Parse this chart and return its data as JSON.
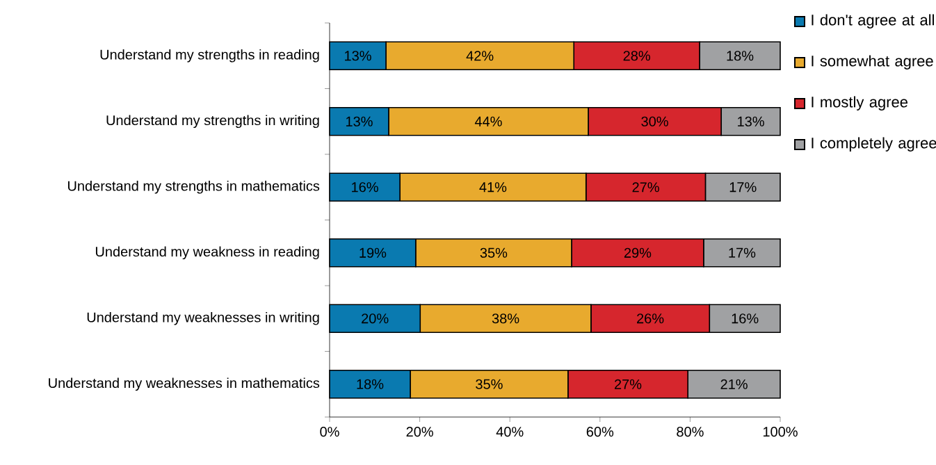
{
  "chart_data": {
    "type": "bar",
    "orientation": "horizontal",
    "stacked": true,
    "categories": [
      "Understand my strengths in reading",
      "Understand my strengths in writing",
      "Understand my strengths in mathematics",
      "Understand my weakness in reading",
      "Understand my weaknesses in writing",
      "Understand my weaknesses in mathematics"
    ],
    "series": [
      {
        "name": "I don't agree at all",
        "color": "#0a7ab0",
        "values": [
          12.5,
          13.1,
          15.6,
          19.1,
          20.1,
          17.9
        ],
        "value_labels": [
          "13%",
          "13%",
          "16%",
          "19%",
          "20%",
          "18%"
        ]
      },
      {
        "name": "I somewhat agree",
        "color": "#e8aa2e",
        "values": [
          41.7,
          44.3,
          41.3,
          34.6,
          37.9,
          35.0
        ],
        "value_labels": [
          "42%",
          "44%",
          "41%",
          "35%",
          "38%",
          "35%"
        ]
      },
      {
        "name": "I mostly agree",
        "color": "#d6262d",
        "values": [
          27.9,
          29.5,
          26.5,
          29.3,
          26.3,
          26.6
        ],
        "value_labels": [
          "28%",
          "30%",
          "27%",
          "29%",
          "26%",
          "27%"
        ]
      },
      {
        "name": "I completely agree",
        "color": "#a0a1a3",
        "values": [
          17.9,
          13.1,
          16.6,
          17.0,
          15.7,
          20.5
        ],
        "value_labels": [
          "18%",
          "13%",
          "17%",
          "17%",
          "16%",
          "21%"
        ]
      }
    ],
    "xlim": [
      0,
      100
    ],
    "xticks": [
      {
        "value": 0,
        "label": "0%"
      },
      {
        "value": 20,
        "label": "20%"
      },
      {
        "value": 40,
        "label": "40%"
      },
      {
        "value": 60,
        "label": "60%"
      },
      {
        "value": 80,
        "label": "80%"
      },
      {
        "value": 100,
        "label": "100%"
      }
    ],
    "grid": false,
    "legend": "top right"
  }
}
